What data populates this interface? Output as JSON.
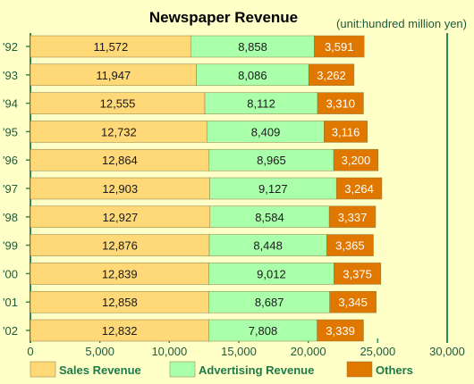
{
  "chart_data": {
    "type": "bar",
    "orientation": "horizontal",
    "stacked": true,
    "title": "Newspaper Revenue",
    "subtitle": "(unit:hundred million yen)",
    "categories": [
      "'92",
      "'93",
      "'94",
      "'95",
      "'96",
      "'97",
      "'98",
      "'99",
      "'00",
      "'01",
      "'02"
    ],
    "series": [
      {
        "name": "Sales Revenue",
        "color": "#ffd878",
        "values": [
          11572,
          11947,
          12555,
          12732,
          12864,
          12903,
          12927,
          12876,
          12839,
          12858,
          12832
        ],
        "labels": [
          "11,572",
          "11,947",
          "12,555",
          "12,732",
          "12,864",
          "12,903",
          "12,927",
          "12,876",
          "12,839",
          "12,858",
          "12,832"
        ]
      },
      {
        "name": "Advertising Revenue",
        "color": "#aaffaa",
        "values": [
          8858,
          8086,
          8112,
          8409,
          8965,
          9127,
          8584,
          8448,
          9012,
          8687,
          7808
        ],
        "labels": [
          "8,858",
          "8,086",
          "8,112",
          "8,409",
          "8,965",
          "9,127",
          "8,584",
          "8,448",
          "9,012",
          "8,687",
          "7,808"
        ]
      },
      {
        "name": "Others",
        "color": "#e07800",
        "values": [
          3591,
          3262,
          3310,
          3116,
          3200,
          3264,
          3337,
          3365,
          3375,
          3345,
          3339
        ],
        "labels": [
          "3,591",
          "3,262",
          "3,310",
          "3,116",
          "3,200",
          "3,264",
          "3,337",
          "3,365",
          "3,375",
          "3,345",
          "3,339"
        ]
      }
    ],
    "xlim": [
      0,
      30000
    ],
    "xticks": [
      0,
      5000,
      10000,
      15000,
      20000,
      25000,
      30000
    ],
    "xtick_labels": [
      "0",
      "5,000",
      "10,000",
      "15,000",
      "20,000",
      "25,000",
      "30,000"
    ],
    "grid": false,
    "legend": "bottom",
    "colors": {
      "background": "#ffffc8",
      "axis": "#2e8b57",
      "text": "#1e5a3c",
      "title": "#000000"
    }
  }
}
